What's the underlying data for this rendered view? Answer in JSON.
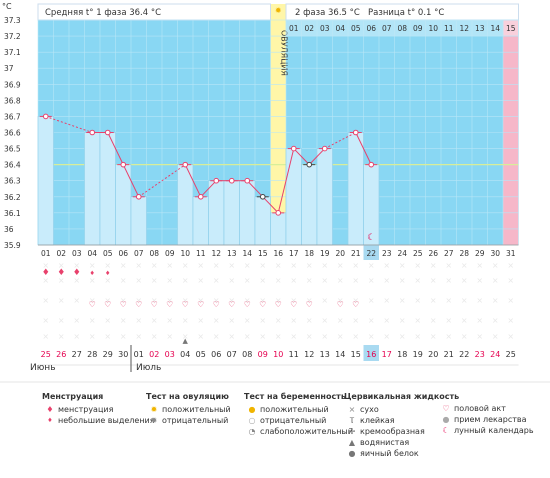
{
  "colors": {
    "phase_bg": "#89d7f3",
    "ovulation_bg": "#fff6a8",
    "today_bg": "#f6b7c9",
    "bar_fill": "#c9ecfb",
    "bar_stroke": "#7fc7e6",
    "line": "#e8416c",
    "coverline": "#d8ee9a",
    "red_day": "#e5004f",
    "today_day_bg": "#a9daf1"
  },
  "header": {
    "phase1": "Средняя t° 1 фаза 36.4 °C",
    "phase2": "2 фаза 36.5 °C",
    "diff": "Разница t° 0.1 °C",
    "ovulation_label": "ОВУЛЯЦИЯ"
  },
  "chart_data": {
    "type": "line",
    "ylabel": "°C",
    "ylim": [
      35.9,
      37.3
    ],
    "yticks": [
      "37.3",
      "37.2",
      "37.1",
      "37",
      "36.9",
      "36.8",
      "36.7",
      "36.6",
      "36.5",
      "36.4",
      "36.3",
      "36.2",
      "36.1",
      "36",
      "35.9"
    ],
    "days": [
      "01",
      "02",
      "03",
      "04",
      "05",
      "06",
      "07",
      "08",
      "09",
      "10",
      "11",
      "12",
      "13",
      "14",
      "15",
      "16",
      "17",
      "18",
      "19",
      "20",
      "21",
      "22",
      "23",
      "24",
      "25",
      "26",
      "27",
      "28",
      "29",
      "30",
      "31"
    ],
    "cycle_day_labels": [
      "01",
      "02",
      "03",
      "04",
      "05",
      "06",
      "07",
      "08",
      "09",
      "10",
      "11",
      "12",
      "13",
      "14",
      "15"
    ],
    "coverline": 36.4,
    "ovulation_day": 16,
    "today_day": 22,
    "series": [
      {
        "values": [
          36.7,
          null,
          null,
          36.6,
          36.6,
          36.4,
          36.2,
          null,
          null,
          36.4,
          36.2,
          36.3,
          36.3,
          36.3,
          36.2,
          36.1,
          36.5,
          36.4,
          36.5,
          null,
          36.6,
          36.4,
          null,
          null,
          null,
          null,
          null,
          null,
          null,
          null,
          null
        ]
      }
    ],
    "hollow_markers": [
      15,
      18
    ],
    "menstruation": [
      1,
      2,
      3,
      4,
      5
    ],
    "menstruation_small": [
      4,
      5
    ],
    "intercourse": [
      4,
      5,
      6,
      7,
      8,
      9,
      10,
      11,
      12,
      13,
      14,
      15,
      16,
      17,
      18,
      20,
      21
    ],
    "drop_marker": [
      10
    ],
    "moon_day": 22,
    "dates": [
      "25",
      "26",
      "27",
      "28",
      "29",
      "30",
      "01",
      "02",
      "03",
      "04",
      "05",
      "06",
      "07",
      "08",
      "09",
      "10",
      "11",
      "12",
      "13",
      "14",
      "15",
      "16",
      "17",
      "18",
      "19",
      "20",
      "21",
      "22",
      "23",
      "24",
      "25"
    ],
    "red_dates": [
      0,
      1,
      7,
      8,
      14,
      15,
      21,
      22,
      28,
      29
    ],
    "today_date_index": 21,
    "months": [
      "Июнь",
      "Июль"
    ]
  },
  "legend": {
    "menstruation": {
      "title": "Менструация",
      "items": [
        "менструация",
        "небольшие выделения"
      ]
    },
    "ovulation_test": {
      "title": "Тест на овуляцию",
      "items": [
        "положительный",
        "отрицательный"
      ]
    },
    "pregnancy_test": {
      "title": "Тест на беременность",
      "items": [
        "положительный",
        "отрицательный",
        "слабоположительный"
      ]
    },
    "cervical": {
      "title": "Цервикальная жидкость",
      "items": [
        "сухо",
        "клейкая",
        "кремообразная",
        "водянистая",
        "яичный белок"
      ]
    },
    "other": {
      "items": [
        "половой акт",
        "прием лекарства",
        "лунный календарь"
      ]
    }
  }
}
